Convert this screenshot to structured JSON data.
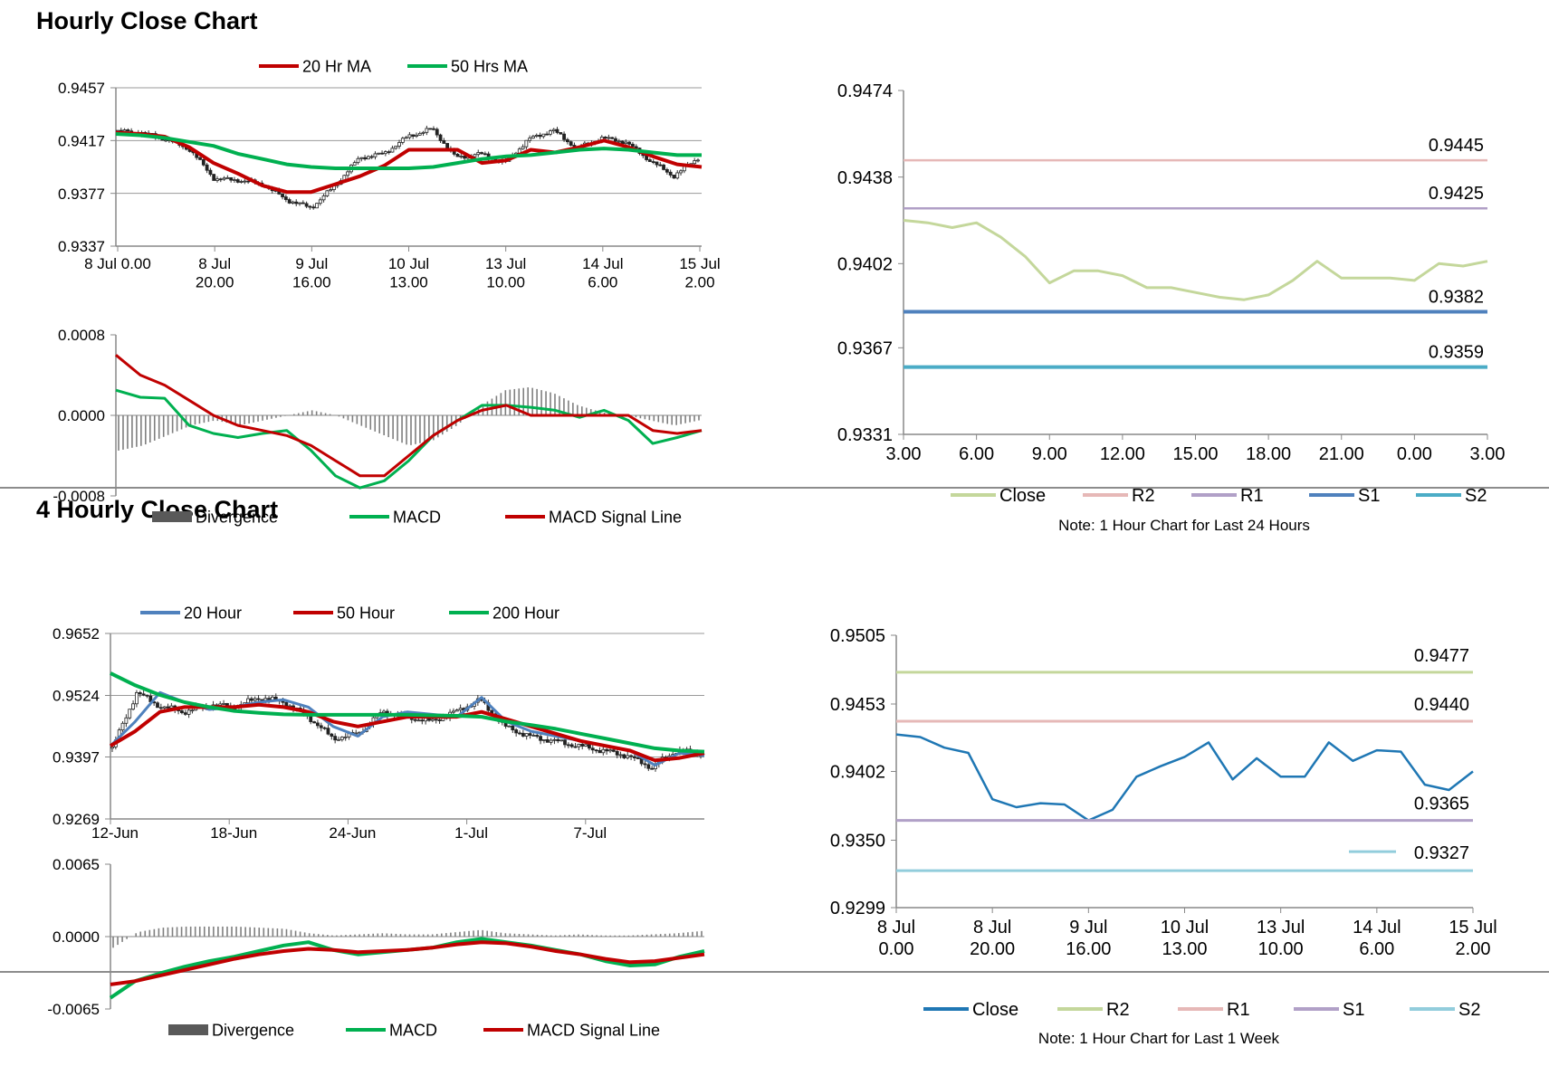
{
  "sections": [
    {
      "title": "Hourly Close Chart"
    },
    {
      "title": "4 Hourly Close Chart"
    }
  ],
  "chart_data": [
    {
      "id": "hourly-price",
      "type": "candlestick",
      "title": "",
      "xlabel": "",
      "ylabel": "",
      "x_ticks": [
        "8 Jul 0.00",
        "8 Jul\n20.00",
        "9 Jul\n16.00",
        "10 Jul\n13.00",
        "13 Jul\n10.00",
        "14 Jul\n6.00",
        "15 Jul\n2.00"
      ],
      "y_ticks": [
        "0.9457",
        "0.9417",
        "0.9377",
        "0.9337"
      ],
      "ylim": [
        0.9337,
        0.9457
      ],
      "grid": "horizontal",
      "legend": "top",
      "series": [
        {
          "name": "20 Hr MA",
          "color": "#c00000",
          "values": [
            0.9423,
            0.9422,
            0.942,
            0.9412,
            0.94,
            0.9392,
            0.9383,
            0.9378,
            0.9378,
            0.9384,
            0.939,
            0.9398,
            0.941,
            0.941,
            0.941,
            0.94,
            0.9402,
            0.941,
            0.9408,
            0.9412,
            0.9417,
            0.9412,
            0.9405,
            0.9399,
            0.9397
          ]
        },
        {
          "name": "50 Hrs MA",
          "color": "#00b050",
          "values": [
            0.9422,
            0.9421,
            0.9419,
            0.9416,
            0.9413,
            0.9407,
            0.9403,
            0.9399,
            0.9397,
            0.9396,
            0.9396,
            0.9396,
            0.9396,
            0.9397,
            0.94,
            0.9403,
            0.9405,
            0.9406,
            0.9408,
            0.941,
            0.9411,
            0.941,
            0.9408,
            0.9406,
            0.9406
          ]
        }
      ],
      "close": [
        0.9424,
        0.9423,
        0.9418,
        0.941,
        0.9388,
        0.9387,
        0.9384,
        0.9372,
        0.9366,
        0.9383,
        0.9404,
        0.9407,
        0.942,
        0.9426,
        0.9404,
        0.9407,
        0.94,
        0.9418,
        0.9425,
        0.9411,
        0.9419,
        0.9416,
        0.9402,
        0.939,
        0.9404
      ]
    },
    {
      "id": "hourly-macd",
      "type": "line",
      "title": "",
      "xlabel": "",
      "ylabel": "",
      "y_ticks": [
        "0.0008",
        "0.0000",
        "-0.0008"
      ],
      "ylim": [
        -0.0008,
        0.0008
      ],
      "legend": "bottom",
      "series": [
        {
          "name": "Divergence",
          "color": "#595959",
          "values": [
            -0.00035,
            -0.0003,
            -0.0002,
            -0.0001,
            -5e-05,
            -0.0001,
            -5e-05,
            0.0,
            5e-05,
            0.0,
            -0.0001,
            -0.0002,
            -0.0003,
            -0.00025,
            -0.0001,
            0.0001,
            0.00025,
            0.00028,
            0.00022,
            0.0001,
            3e-05,
            0.0,
            -5e-05,
            -0.0001,
            -5e-05
          ]
        },
        {
          "name": "MACD",
          "color": "#00b050",
          "values": [
            0.00025,
            0.00018,
            0.00017,
            -0.0001,
            -0.00018,
            -0.00022,
            -0.00018,
            -0.00015,
            -0.00035,
            -0.0006,
            -0.00072,
            -0.00065,
            -0.00045,
            -0.0002,
            -5e-05,
            0.0001,
            0.0001,
            8e-05,
            5e-05,
            -2e-05,
            5e-05,
            -5e-05,
            -0.00028,
            -0.00022,
            -0.00015
          ]
        },
        {
          "name": "MACD Signal Line",
          "color": "#c00000",
          "values": [
            0.0006,
            0.0004,
            0.0003,
            0.00015,
            0.0,
            -0.0001,
            -0.00015,
            -0.0002,
            -0.0003,
            -0.00045,
            -0.0006,
            -0.0006,
            -0.0004,
            -0.0002,
            -5e-05,
            5e-05,
            0.0001,
            0.0,
            0.0,
            0.0,
            0.0,
            0.0,
            -0.00015,
            -0.00018,
            -0.00015
          ]
        }
      ]
    },
    {
      "id": "hourly-pivots",
      "type": "line",
      "title": "",
      "xlabel": "",
      "ylabel": "",
      "x_ticks": [
        "3.00",
        "6.00",
        "9.00",
        "12.00",
        "15.00",
        "18.00",
        "21.00",
        "0.00",
        "3.00"
      ],
      "y_ticks": [
        "0.9474",
        "0.9438",
        "0.9402",
        "0.9367",
        "0.9331"
      ],
      "ylim": [
        0.9331,
        0.9474
      ],
      "legend": "bottom",
      "note": "Note: 1 Hour Chart for Last 24 Hours",
      "series": [
        {
          "name": "Close",
          "color": "#c4d79b",
          "values": [
            0.942,
            0.9419,
            0.9417,
            0.9419,
            0.9413,
            0.9405,
            0.9394,
            0.9399,
            0.9399,
            0.9397,
            0.9392,
            0.9392,
            0.939,
            0.9388,
            0.9387,
            0.9389,
            0.9395,
            0.9403,
            0.9396,
            0.9396,
            0.9396,
            0.9395,
            0.9402,
            0.9401,
            0.9403
          ]
        },
        {
          "name": "R2",
          "color": "#e6b8b7",
          "level": 0.9445,
          "label": "0.9445"
        },
        {
          "name": "R1",
          "color": "#b1a0c7",
          "level": 0.9425,
          "label": "0.9425"
        },
        {
          "name": "S1",
          "color": "#4f81bd",
          "level": 0.9382,
          "label": "0.9382"
        },
        {
          "name": "S2",
          "color": "#4bacc6",
          "level": 0.9359,
          "label": "0.9359"
        }
      ]
    },
    {
      "id": "four-hourly-price",
      "type": "candlestick",
      "title": "",
      "xlabel": "",
      "ylabel": "",
      "x_ticks": [
        "12-Jun",
        "18-Jun",
        "24-Jun",
        "1-Jul",
        "7-Jul"
      ],
      "y_ticks": [
        "0.9652",
        "0.9524",
        "0.9397",
        "0.9269"
      ],
      "ylim": [
        0.9269,
        0.9652
      ],
      "grid": "horizontal",
      "legend": "top",
      "series": [
        {
          "name": "20 Hour",
          "color": "#4f81bd",
          "values": [
            0.942,
            0.947,
            0.953,
            0.951,
            0.9495,
            0.95,
            0.951,
            0.9515,
            0.95,
            0.946,
            0.944,
            0.948,
            0.949,
            0.9485,
            0.948,
            0.952,
            0.947,
            0.945,
            0.944,
            0.943,
            0.942,
            0.941,
            0.938,
            0.9405,
            0.94
          ]
        },
        {
          "name": "50 Hour",
          "color": "#c00000",
          "values": [
            0.942,
            0.945,
            0.949,
            0.95,
            0.95,
            0.95,
            0.9505,
            0.95,
            0.949,
            0.947,
            0.946,
            0.947,
            0.948,
            0.948,
            0.948,
            0.949,
            0.9475,
            0.946,
            0.9445,
            0.943,
            0.942,
            0.941,
            0.939,
            0.9395,
            0.9405
          ]
        },
        {
          "name": "200 Hour",
          "color": "#00b050",
          "values": [
            0.957,
            0.9545,
            0.9525,
            0.951,
            0.95,
            0.9492,
            0.9488,
            0.9485,
            0.9484,
            0.9484,
            0.9484,
            0.9484,
            0.9484,
            0.9483,
            0.9482,
            0.948,
            0.947,
            0.9463,
            0.9455,
            0.9445,
            0.9435,
            0.9425,
            0.9415,
            0.941,
            0.9408
          ]
        }
      ],
      "close": [
        0.9415,
        0.953,
        0.95,
        0.949,
        0.9505,
        0.95,
        0.952,
        0.951,
        0.948,
        0.9435,
        0.9445,
        0.949,
        0.948,
        0.947,
        0.949,
        0.9515,
        0.946,
        0.944,
        0.943,
        0.942,
        0.941,
        0.94,
        0.9375,
        0.941,
        0.9405
      ]
    },
    {
      "id": "four-hourly-macd",
      "type": "line",
      "title": "",
      "xlabel": "",
      "ylabel": "",
      "y_ticks": [
        "0.0065",
        "0.0000",
        "-0.0065"
      ],
      "ylim": [
        -0.0065,
        0.0065
      ],
      "legend": "bottom",
      "series": [
        {
          "name": "Divergence",
          "color": "#595959",
          "values": [
            -0.001,
            0.0004,
            0.0008,
            0.0009,
            0.0009,
            0.0009,
            0.0008,
            0.0007,
            0.0003,
            0.0001,
            0.0002,
            0.0003,
            0.0002,
            0.0002,
            0.0004,
            0.0006,
            0.0003,
            0.0002,
            0.0001,
            0.0002,
            0.0001,
            0.0001,
            0.0002,
            0.0003,
            0.0005
          ]
        },
        {
          "name": "MACD",
          "color": "#00b050",
          "values": [
            -0.0055,
            -0.004,
            -0.0033,
            -0.0027,
            -0.0022,
            -0.0018,
            -0.0013,
            -0.0008,
            -0.0005,
            -0.0012,
            -0.0016,
            -0.0014,
            -0.0012,
            -0.001,
            -0.0005,
            -0.0002,
            -0.0005,
            -0.0008,
            -0.0012,
            -0.0016,
            -0.0022,
            -0.0026,
            -0.0025,
            -0.0018,
            -0.0013
          ]
        },
        {
          "name": "MACD Signal Line",
          "color": "#c00000",
          "values": [
            -0.0043,
            -0.004,
            -0.0035,
            -0.003,
            -0.0025,
            -0.002,
            -0.0016,
            -0.0013,
            -0.0011,
            -0.0012,
            -0.0014,
            -0.0013,
            -0.0012,
            -0.001,
            -0.0007,
            -0.0005,
            -0.0006,
            -0.0009,
            -0.0013,
            -0.0016,
            -0.002,
            -0.0023,
            -0.0022,
            -0.0019,
            -0.0016
          ]
        }
      ]
    },
    {
      "id": "four-hourly-pivots",
      "type": "line",
      "title": "",
      "xlabel": "",
      "ylabel": "",
      "x_ticks": [
        "8 Jul\n0.00",
        "8 Jul\n20.00",
        "9 Jul\n16.00",
        "10 Jul\n13.00",
        "13 Jul\n10.00",
        "14 Jul\n6.00",
        "15 Jul\n2.00"
      ],
      "y_ticks": [
        "0.9505",
        "0.9453",
        "0.9402",
        "0.9350",
        "0.9299"
      ],
      "ylim": [
        0.9299,
        0.9505
      ],
      "legend": "bottom",
      "note": "Note: 1 Hour Chart for Last 1 Week",
      "series": [
        {
          "name": "Close",
          "color": "#1f77b4",
          "values": [
            0.943,
            0.9428,
            0.942,
            0.9416,
            0.9381,
            0.9375,
            0.9378,
            0.9377,
            0.9365,
            0.9373,
            0.9398,
            0.9406,
            0.9413,
            0.9424,
            0.9396,
            0.9412,
            0.9398,
            0.9398,
            0.9424,
            0.941,
            0.9418,
            0.9417,
            0.9392,
            0.9388,
            0.9402
          ]
        },
        {
          "name": "R2",
          "color": "#c4d79b",
          "level": 0.9477,
          "label": "0.9477"
        },
        {
          "name": "R1",
          "color": "#e6b8b7",
          "level": 0.944,
          "label": "0.9440"
        },
        {
          "name": "S1",
          "color": "#b1a0c7",
          "level": 0.9365,
          "label": "0.9365"
        },
        {
          "name": "S2",
          "color": "#92cddc",
          "level": 0.9327,
          "label": "0.9327"
        }
      ]
    }
  ]
}
